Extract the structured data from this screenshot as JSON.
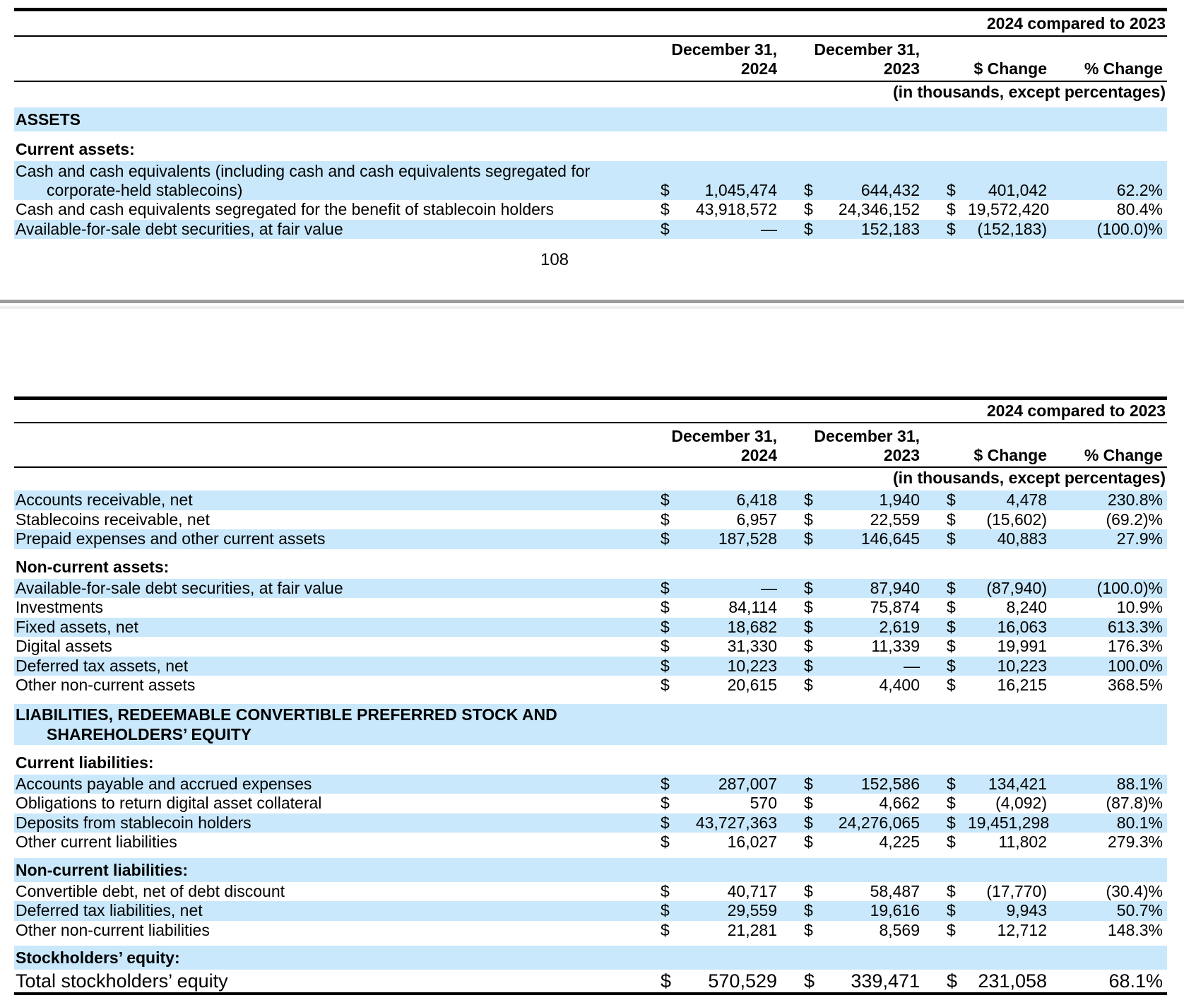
{
  "colors": {
    "row_highlight": "#c9e8fb",
    "divider_dark": "#9b9b9b",
    "divider_light": "#efefef",
    "text": "#000000"
  },
  "currency_symbol": "$",
  "page_number": "108",
  "tables": [
    {
      "comparison_label": "2024 compared to 2023",
      "col_headers": {
        "dec_2024": {
          "line1": "December 31,",
          "line2": "2024"
        },
        "dec_2023": {
          "line1": "December 31,",
          "line2": "2023"
        },
        "dollar_change": "$ Change",
        "percent_change": "% Change"
      },
      "units_note": "(in thousands, except percentages)",
      "rows": [
        {
          "type": "section",
          "label": "ASSETS",
          "shade": true
        },
        {
          "type": "section",
          "label": "Current assets:",
          "shade": false
        },
        {
          "type": "data",
          "label": "Cash and cash equivalents (including cash and cash equivalents segregated for",
          "label2": "corporate-held stablecoins)",
          "shade": true,
          "v2024": "1,045,474",
          "v2023": "644,432",
          "change": "401,042",
          "pct": "62.2%"
        },
        {
          "type": "data",
          "label": "Cash and cash equivalents segregated for the benefit of stablecoin holders",
          "shade": false,
          "v2024": "43,918,572",
          "v2023": "24,346,152",
          "change": "19,572,420",
          "pct": "80.4%"
        },
        {
          "type": "data",
          "label": "Available-for-sale debt securities, at fair value",
          "shade": true,
          "v2024": "—",
          "v2023": "152,183",
          "change": "(152,183)",
          "pct": "(100.0)%"
        }
      ]
    },
    {
      "comparison_label": "2024 compared to 2023",
      "col_headers": {
        "dec_2024": {
          "line1": "December 31,",
          "line2": "2024"
        },
        "dec_2023": {
          "line1": "December 31,",
          "line2": "2023"
        },
        "dollar_change": "$ Change",
        "percent_change": "% Change"
      },
      "units_note": "(in thousands, except percentages)",
      "rows": [
        {
          "type": "data",
          "label": "Accounts receivable, net",
          "shade": true,
          "v2024": "6,418",
          "v2023": "1,940",
          "change": "4,478",
          "pct": "230.8%"
        },
        {
          "type": "data",
          "label": "Stablecoins receivable, net",
          "shade": false,
          "v2024": "6,957",
          "v2023": "22,559",
          "change": "(15,602)",
          "pct": "(69.2)%"
        },
        {
          "type": "data",
          "label": "Prepaid expenses and other current assets",
          "shade": true,
          "v2024": "187,528",
          "v2023": "146,645",
          "change": "40,883",
          "pct": "27.9%"
        },
        {
          "type": "section",
          "label": "Non-current assets:",
          "shade": false
        },
        {
          "type": "data",
          "label": "Available-for-sale debt securities, at fair value",
          "shade": true,
          "v2024": "—",
          "v2023": "87,940",
          "change": "(87,940)",
          "pct": "(100.0)%"
        },
        {
          "type": "data",
          "label": "Investments",
          "shade": false,
          "v2024": "84,114",
          "v2023": "75,874",
          "change": "8,240",
          "pct": "10.9%"
        },
        {
          "type": "data",
          "label": "Fixed assets, net",
          "shade": true,
          "v2024": "18,682",
          "v2023": "2,619",
          "change": "16,063",
          "pct": "613.3%"
        },
        {
          "type": "data",
          "label": "Digital assets",
          "shade": false,
          "v2024": "31,330",
          "v2023": "11,339",
          "change": "19,991",
          "pct": "176.3%"
        },
        {
          "type": "data",
          "label": "Deferred tax assets, net",
          "shade": true,
          "v2024": "10,223",
          "v2023": "—",
          "change": "10,223",
          "pct": "100.0%"
        },
        {
          "type": "data",
          "label": "Other non-current assets",
          "shade": false,
          "v2024": "20,615",
          "v2023": "4,400",
          "change": "16,215",
          "pct": "368.5%"
        },
        {
          "type": "section",
          "label": "LIABILITIES, REDEEMABLE CONVERTIBLE PREFERRED STOCK AND",
          "label2": "SHAREHOLDERS’ EQUITY",
          "shade": true
        },
        {
          "type": "section",
          "label": "Current liabilities:",
          "shade": false
        },
        {
          "type": "data",
          "label": "Accounts payable and accrued expenses",
          "shade": true,
          "v2024": "287,007",
          "v2023": "152,586",
          "change": "134,421",
          "pct": "88.1%"
        },
        {
          "type": "data",
          "label": "Obligations to return digital asset collateral",
          "shade": false,
          "v2024": "570",
          "v2023": "4,662",
          "change": "(4,092)",
          "pct": "(87.8)%"
        },
        {
          "type": "data",
          "label": "Deposits from stablecoin holders",
          "shade": true,
          "v2024": "43,727,363",
          "v2023": "24,276,065",
          "change": "19,451,298",
          "pct": "80.1%"
        },
        {
          "type": "data",
          "label": "Other current liabilities",
          "shade": false,
          "v2024": "16,027",
          "v2023": "4,225",
          "change": "11,802",
          "pct": "279.3%"
        },
        {
          "type": "section",
          "label": "Non-current liabilities:",
          "shade": true
        },
        {
          "type": "data",
          "label": "Convertible debt, net of debt discount",
          "shade": false,
          "v2024": "40,717",
          "v2023": "58,487",
          "change": "(17,770)",
          "pct": "(30.4)%"
        },
        {
          "type": "data",
          "label": "Deferred tax liabilities, net",
          "shade": true,
          "v2024": "29,559",
          "v2023": "19,616",
          "change": "9,943",
          "pct": "50.7%"
        },
        {
          "type": "data",
          "label": "Other non-current liabilities",
          "shade": false,
          "v2024": "21,281",
          "v2023": "8,569",
          "change": "12,712",
          "pct": "148.3%"
        },
        {
          "type": "section",
          "label": "Stockholders’ equity:",
          "shade": true
        },
        {
          "type": "data",
          "label": "Total stockholders’ equity",
          "shade": false,
          "total": true,
          "v2024": "570,529",
          "v2023": "339,471",
          "change": "231,058",
          "pct": "68.1%"
        }
      ]
    }
  ]
}
